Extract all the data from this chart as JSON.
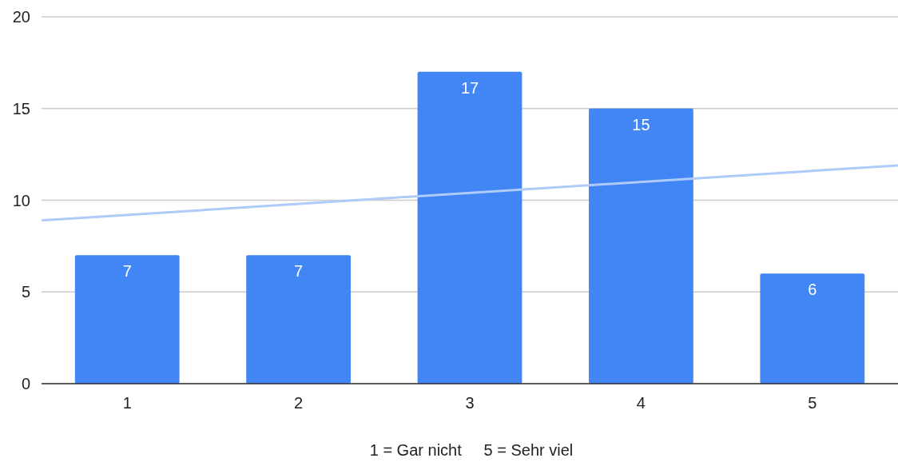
{
  "chart_data": {
    "type": "bar",
    "x": [
      1,
      2,
      3,
      4,
      5
    ],
    "xlim": [
      0.5,
      5.5
    ],
    "xticks": [
      1,
      2,
      3,
      4,
      5
    ],
    "ylim": [
      0,
      20
    ],
    "yticks": [
      0,
      5,
      10,
      15,
      20
    ],
    "grid": "y",
    "series": [
      {
        "color": "#4285f4",
        "values": [
          7,
          7,
          17,
          15,
          6
        ],
        "value_labels": [
          "7",
          "7",
          "17",
          "15",
          "6"
        ]
      },
      {
        "type": "line",
        "color": "#aecbfa",
        "x": [
          0.5,
          5.5
        ],
        "values": [
          8.9,
          11.9
        ]
      }
    ],
    "annotations": [
      "1 = Gar nicht     5 = Sehr viel"
    ]
  }
}
